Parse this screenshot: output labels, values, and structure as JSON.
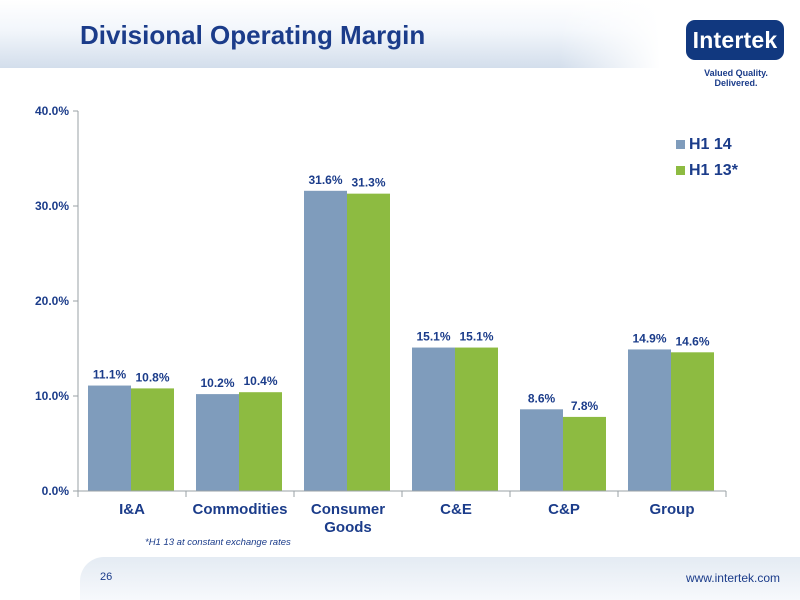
{
  "slide": {
    "title": "Divisional Operating Margin",
    "logo_text": "Intertek",
    "tagline": "Valued Quality. Delivered.",
    "footnote": "*H1 13 at constant exchange rates",
    "page_number": "26",
    "website": "www.intertek.com"
  },
  "colors": {
    "title": "#1b3c8a",
    "h1_14": "#7f9cbc",
    "h1_13": "#8dbb41",
    "axis": "#9aa0a6",
    "logo_bg": "#11387f"
  },
  "chart_data": {
    "type": "bar",
    "categories": [
      "I&A",
      "Commodities",
      "Consumer Goods",
      "C&E",
      "C&P",
      "Group"
    ],
    "category_lines": [
      [
        "I&A"
      ],
      [
        "Commodities"
      ],
      [
        "Consumer",
        "Goods"
      ],
      [
        "C&E"
      ],
      [
        "C&P"
      ],
      [
        "Group"
      ]
    ],
    "series": [
      {
        "name": "H1 14",
        "values": [
          11.1,
          10.2,
          31.6,
          15.1,
          8.6,
          14.9
        ],
        "labels": [
          "11.1%",
          "10.2%",
          "31.6%",
          "15.1%",
          "8.6%",
          "14.9%"
        ]
      },
      {
        "name": "H1 13*",
        "values": [
          10.8,
          10.4,
          31.3,
          15.1,
          7.8,
          14.6
        ],
        "labels": [
          "10.8%",
          "10.4%",
          "31.3%",
          "15.1%",
          "7.8%",
          "14.6%"
        ]
      }
    ],
    "y_ticks": [
      0,
      10,
      20,
      30,
      40
    ],
    "y_tick_labels": [
      "0.0%",
      "10.0%",
      "20.0%",
      "30.0%",
      "40.0%"
    ],
    "ylim": [
      0,
      40
    ],
    "grid": false,
    "legend_position": "top-right"
  }
}
